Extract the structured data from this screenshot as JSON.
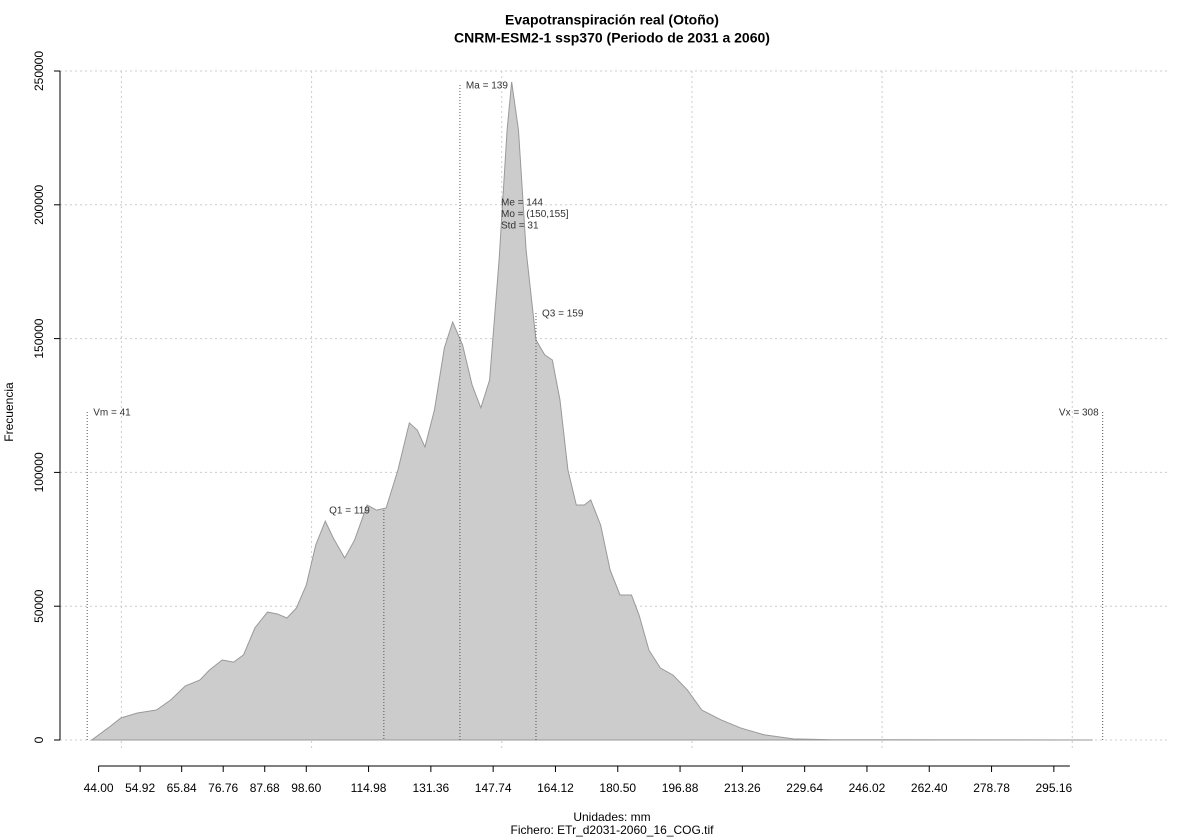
{
  "chart_data": {
    "type": "area",
    "title": "Evapotranspiración real (Otoño)",
    "subtitle": "CNRM-ESM2-1 ssp370 (Periodo de 2031 a 2060)",
    "x_label": "Unidades: mm",
    "caption": "Fichero: ETr_d2031-2060_16_COG.tif",
    "y_label": "Frecuencia",
    "color": "#cccccc",
    "edge_color": "#999999",
    "x": [
      42.2,
      46.5,
      49.8,
      54.2,
      59.2,
      63,
      66.8,
      70.6,
      73.2,
      76.5,
      79.5,
      82.1,
      85.1,
      88.4,
      91,
      93.5,
      96,
      98.6,
      101.1,
      103.6,
      105.7,
      108.7,
      111.3,
      114.6,
      117.1,
      119.6,
      122.7,
      125.7,
      127.8,
      129.8,
      132.3,
      134.9,
      137.1,
      139.7,
      142.2,
      144.5,
      146.8,
      149.3,
      151.4,
      152.6,
      154.4,
      156.4,
      159,
      161.3,
      163.3,
      165.3,
      167.4,
      169.6,
      171.7,
      173.4,
      176,
      178.5,
      181.1,
      184.1,
      186.1,
      188.7,
      191.7,
      195,
      198.8,
      202.6,
      207.7,
      212.8,
      219.1,
      226.7,
      236.9,
      305.4
    ],
    "values": [
      0,
      4500,
      8200,
      10100,
      11200,
      15000,
      20200,
      22400,
      26200,
      29900,
      29100,
      31800,
      41900,
      47800,
      47100,
      45600,
      49300,
      57900,
      72900,
      81800,
      75500,
      68000,
      74700,
      87800,
      85900,
      86700,
      100900,
      118500,
      115800,
      109500,
      123300,
      146500,
      156200,
      147600,
      132700,
      124100,
      134500,
      179400,
      227900,
      245900,
      227900,
      183100,
      149500,
      143900,
      142000,
      127100,
      100900,
      87800,
      87800,
      89700,
      80300,
      63500,
      54200,
      54200,
      46700,
      33600,
      26900,
      24300,
      18700,
      11200,
      7500,
      4500,
      1900,
      400,
      100,
      0
    ],
    "xlim": [
      33.85,
      325.7
    ],
    "ylim": [
      0,
      250000
    ],
    "yticks": [
      0,
      50000,
      100000,
      150000,
      200000,
      250000
    ],
    "xticks": [
      {
        "value": 44,
        "label": "44.00"
      },
      54.92,
      65.84,
      76.76,
      87.68,
      {
        "value": 98.6,
        "label": "98.60"
      },
      114.98,
      131.36,
      147.74,
      164.12,
      {
        "value": 180.5,
        "label": "180.50"
      },
      196.88,
      213.26,
      229.64,
      246.02,
      {
        "value": 262.4,
        "label": "262.40"
      },
      278.78,
      295.16
    ],
    "xgrid": [
      50,
      100,
      150,
      200,
      250,
      300
    ],
    "grid": true,
    "markers": [
      {
        "label": "Vm = 41",
        "value": 41
      },
      {
        "label": "Q1 = 119",
        "value": 119
      },
      {
        "label": "Ma = 139",
        "value": 139
      },
      {
        "label": "Q3 = 159",
        "value": 159
      },
      {
        "label": "Vx = 308",
        "value": 308
      }
    ],
    "stats": [
      "Me = 144",
      "Mo = (150,155]",
      "Std = 31"
    ]
  }
}
